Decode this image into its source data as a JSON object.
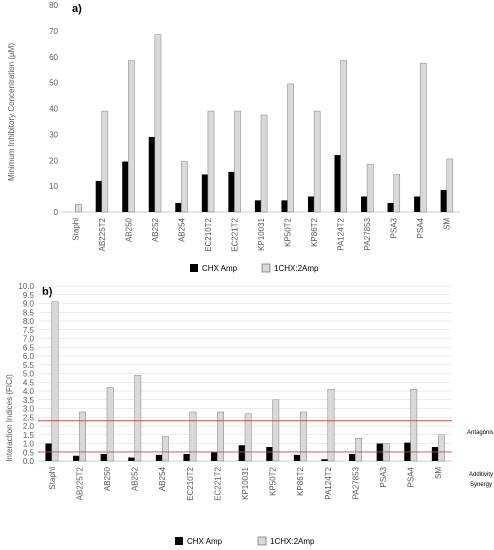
{
  "chart_data": [
    {
      "type": "bar",
      "panel_label": "a)",
      "categories": [
        "Staphl",
        "AB225T2",
        "AB250",
        "AB252",
        "AB254",
        "EC210T2",
        "EC221T2",
        "KP10031",
        "KP50T2",
        "KP86T2",
        "PA124T2",
        "PA27853",
        "PSA3",
        "PSA4",
        "SM"
      ],
      "series": [
        {
          "name": "CHX Amp",
          "color": "#000000",
          "values": [
            0,
            12,
            19.5,
            29,
            3.5,
            14.5,
            15.5,
            4.5,
            4.5,
            6,
            22,
            6,
            3.5,
            6,
            8.5
          ]
        },
        {
          "name": "1CHX:2Amp",
          "color": "#d9d9d9",
          "values": [
            3,
            39,
            58.5,
            68.5,
            19.5,
            39,
            39,
            37.5,
            49.5,
            39,
            58.5,
            18.5,
            14.5,
            57.5,
            20.5
          ]
        }
      ],
      "ylabel": "Minimum Inhibitory Concentration (μM)",
      "ylim": [
        0,
        80
      ],
      "yticks": [
        "0",
        "10",
        "20",
        "30",
        "40",
        "50",
        "60",
        "70",
        "80"
      ],
      "legend": "bottom-center"
    },
    {
      "type": "bar",
      "panel_label": "b)",
      "categories": [
        "Staphl",
        "AB225T2",
        "AB250",
        "AB252",
        "AB254",
        "EC210T2",
        "EC221T2",
        "KP10031",
        "KP50T2",
        "KP86T2",
        "PA124T2",
        "PA27853",
        "PSA3",
        "PSA4",
        "SM"
      ],
      "series": [
        {
          "name": "CHX Amp",
          "color": "#000000",
          "values": [
            1.0,
            0.3,
            0.4,
            0.2,
            0.35,
            0.4,
            0.5,
            0.9,
            0.8,
            0.35,
            0.1,
            0.4,
            1.0,
            1.05,
            0.8
          ]
        },
        {
          "name": "1CHX:2Amp",
          "color": "#d9d9d9",
          "values": [
            9.1,
            2.8,
            4.2,
            4.9,
            1.4,
            2.8,
            2.8,
            2.7,
            3.5,
            2.8,
            4.1,
            1.3,
            1.0,
            4.1,
            1.5
          ]
        }
      ],
      "ylabel": "Interaction Indices (FICI)",
      "ylim": [
        0,
        10
      ],
      "yticks": [
        "0.0",
        "0.5",
        "1.0",
        "1.5",
        "2.0",
        "2.5",
        "3.0",
        "3.5",
        "4.0",
        "4.5",
        "5.0",
        "5.5",
        "6.0",
        "6.5",
        "7.0",
        "7.5",
        "8.0",
        "8.5",
        "9.0",
        "9.5",
        "10.0"
      ],
      "reference_lines": [
        {
          "label": "Antagonism",
          "value": 2.3,
          "color": "#c0504d"
        },
        {
          "label": "Additivity",
          "value": 0.52,
          "color": "#c0504d"
        },
        {
          "label": "Synergy",
          "value": null,
          "color": "#c0504d"
        }
      ],
      "legend": "bottom-center"
    }
  ]
}
